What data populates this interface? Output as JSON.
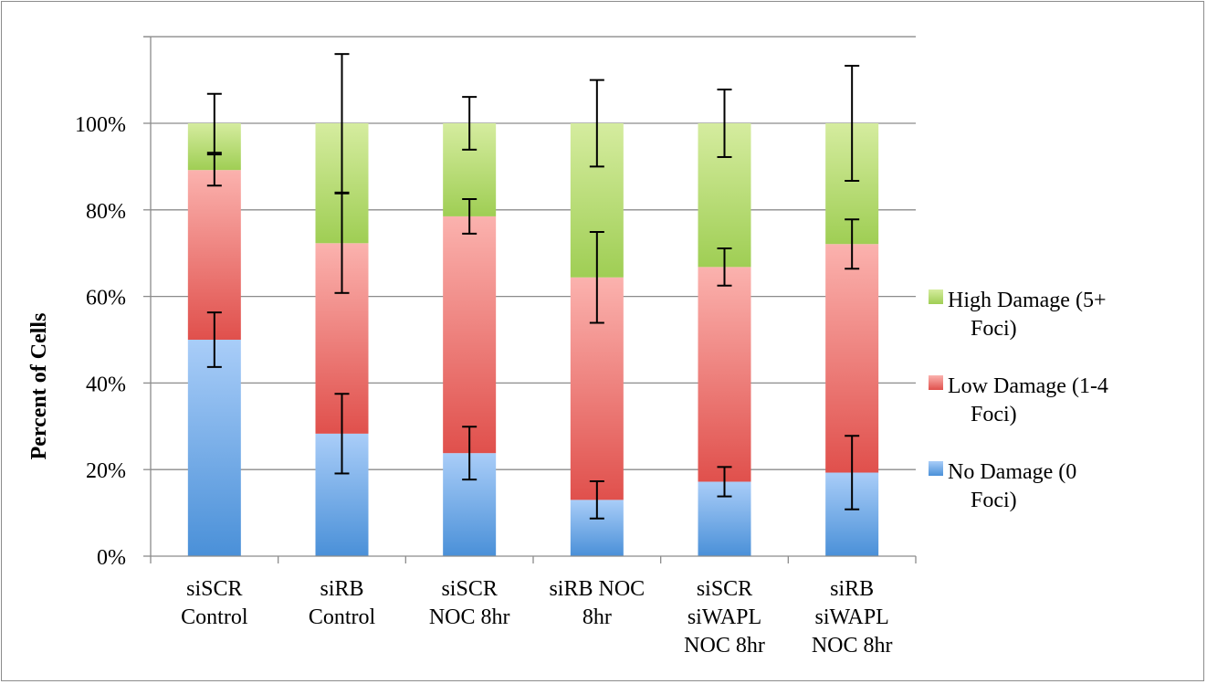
{
  "chart_data": {
    "type": "bar",
    "stacked": true,
    "categories": [
      [
        "siSCR",
        "Control"
      ],
      [
        "siRB",
        "Control"
      ],
      [
        "siSCR",
        "NOC 8hr"
      ],
      [
        "siRB NOC",
        "8hr"
      ],
      [
        "siSCR",
        "siWAPL",
        "NOC 8hr"
      ],
      [
        "siRB",
        "siWAPL",
        "NOC 8hr"
      ]
    ],
    "series": [
      {
        "name": "No Damage (0 Foci)",
        "legend_lines": [
          "No Damage (0",
          "Foci)"
        ],
        "color_top": "#a9cdf8",
        "color_bottom": "#4a90d8",
        "values": [
          50,
          28.3,
          23.8,
          13.0,
          17.2,
          19.3
        ],
        "error": [
          6.3,
          9.2,
          6.1,
          4.3,
          3.4,
          8.5
        ]
      },
      {
        "name": "Low Damage (1-4 Foci)",
        "legend_lines": [
          "Low Damage (1-4",
          "Foci)"
        ],
        "color_top": "#fbb2ae",
        "color_bottom": "#e0504c",
        "values": [
          39.2,
          44.0,
          54.7,
          51.4,
          49.6,
          52.8
        ],
        "error": [
          3.6,
          11.5,
          4.0,
          10.5,
          4.3,
          5.7
        ]
      },
      {
        "name": "High Damage (5+ Foci)",
        "legend_lines": [
          "High Damage (5+",
          "Foci)"
        ],
        "color_top": "#d5ec9f",
        "color_bottom": "#9fce54",
        "values": [
          10.8,
          27.7,
          21.5,
          35.6,
          33.2,
          27.9
        ],
        "error": [
          6.8,
          16.0,
          6.1,
          10.0,
          7.8,
          13.3
        ]
      }
    ],
    "ylabel": "Percent of Cells",
    "xlabel": "",
    "title": "",
    "ylim": [
      0,
      100
    ],
    "yticks": [
      "0%",
      "20%",
      "40%",
      "60%",
      "80%",
      "100%"
    ],
    "grid": true,
    "legend_position": "right",
    "gridline_color": "#8c8c8c"
  }
}
